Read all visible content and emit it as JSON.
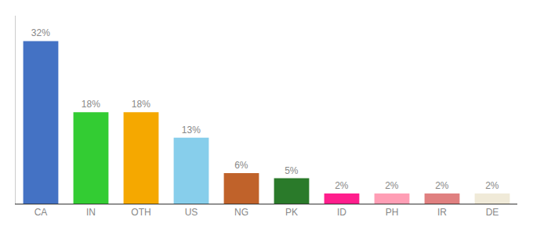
{
  "chart_data": {
    "type": "bar",
    "categories": [
      "CA",
      "IN",
      "OTH",
      "US",
      "NG",
      "PK",
      "ID",
      "PH",
      "IR",
      "DE"
    ],
    "values": [
      32,
      18,
      18,
      13,
      6,
      5,
      2,
      2,
      2,
      2
    ],
    "value_labels": [
      "32%",
      "18%",
      "18%",
      "13%",
      "6%",
      "5%",
      "2%",
      "2%",
      "2%",
      "2%"
    ],
    "colors": [
      "#4472c4",
      "#33cc33",
      "#f5a800",
      "#87ceeb",
      "#c0622a",
      "#2a7a2a",
      "#ff1e8c",
      "#ff9eb5",
      "#e08080",
      "#f0ead8"
    ],
    "ylim": [
      0,
      37
    ],
    "grid": false,
    "data_labels": true,
    "tick_labels": "x"
  }
}
